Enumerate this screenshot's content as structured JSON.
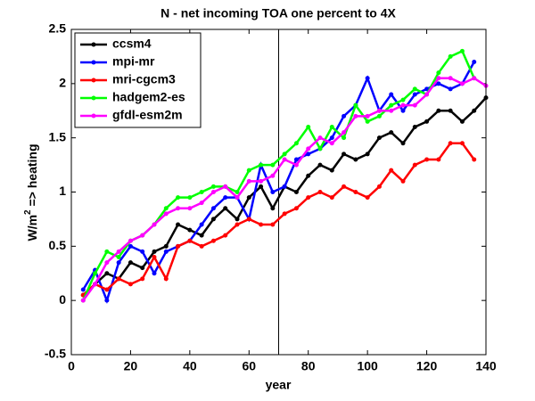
{
  "chart_data": {
    "type": "line",
    "title": "N - net incoming TOA one percent to 4X",
    "xlabel": "year",
    "ylabel_parts": [
      "W/m",
      "2",
      " => heating"
    ],
    "x": [
      4,
      8,
      12,
      16,
      20,
      24,
      28,
      32,
      36,
      40,
      44,
      48,
      52,
      56,
      60,
      64,
      68,
      72,
      76,
      80,
      84,
      88,
      92,
      96,
      100,
      104,
      108,
      112,
      116,
      120,
      124,
      128,
      132,
      136,
      140
    ],
    "series": [
      {
        "name": "ccsm4",
        "color": "#000000",
        "values": [
          0.05,
          0.15,
          0.25,
          0.2,
          0.35,
          0.3,
          0.45,
          0.5,
          0.7,
          0.65,
          0.6,
          0.75,
          0.85,
          0.75,
          0.95,
          1.05,
          0.85,
          1.05,
          1.0,
          1.15,
          1.25,
          1.2,
          1.35,
          1.3,
          1.35,
          1.5,
          1.55,
          1.45,
          1.6,
          1.65,
          1.75,
          1.75,
          1.65,
          1.75,
          1.87
        ]
      },
      {
        "name": "mpi-mr",
        "color": "#0000ff",
        "values": [
          0.1,
          0.28,
          0.0,
          0.35,
          0.5,
          0.45,
          0.25,
          0.45,
          0.5,
          0.55,
          0.7,
          0.85,
          0.95,
          0.95,
          0.75,
          1.25,
          1.0,
          1.05,
          1.3,
          1.35,
          1.4,
          1.5,
          1.7,
          1.8,
          2.05,
          1.75,
          1.9,
          1.75,
          1.9,
          1.95,
          2.0,
          1.95,
          2.0,
          2.2,
          null
        ]
      },
      {
        "name": "mri-cgcm3",
        "color": "#ff0000",
        "values": [
          0.05,
          0.15,
          0.1,
          0.2,
          0.15,
          0.2,
          0.4,
          0.2,
          0.5,
          0.55,
          0.5,
          0.55,
          0.6,
          0.7,
          0.75,
          0.7,
          0.7,
          0.8,
          0.85,
          0.95,
          1.0,
          0.95,
          1.05,
          1.0,
          0.95,
          1.05,
          1.2,
          1.1,
          1.25,
          1.3,
          1.3,
          1.45,
          1.45,
          1.3,
          null
        ]
      },
      {
        "name": "hadgem2-es",
        "color": "#00ff00",
        "values": [
          0.0,
          0.25,
          0.45,
          0.4,
          0.55,
          0.6,
          0.7,
          0.85,
          0.95,
          0.95,
          1.0,
          1.05,
          1.05,
          1.0,
          1.2,
          1.25,
          1.25,
          1.35,
          1.45,
          1.6,
          1.4,
          1.6,
          1.5,
          1.8,
          1.65,
          1.7,
          1.8,
          1.85,
          1.95,
          1.9,
          2.1,
          2.25,
          2.3,
          2.05,
          null
        ]
      },
      {
        "name": "gfdl-esm2m",
        "color": "#ff00ff",
        "values": [
          0.0,
          0.15,
          0.35,
          0.45,
          0.55,
          0.6,
          0.7,
          0.8,
          0.85,
          0.85,
          0.9,
          1.0,
          1.05,
          0.95,
          1.1,
          1.1,
          1.15,
          1.3,
          1.25,
          1.4,
          1.5,
          1.45,
          1.55,
          1.7,
          1.7,
          1.75,
          1.75,
          1.8,
          1.8,
          1.9,
          2.05,
          2.05,
          2.0,
          2.05,
          1.98
        ]
      }
    ],
    "vline": 70,
    "xlim": [
      0,
      140
    ],
    "xticks": [
      0,
      20,
      40,
      60,
      80,
      100,
      120,
      140
    ],
    "ylim": [
      -0.5,
      2.5
    ],
    "yticks": [
      -0.5,
      0,
      0.5,
      1,
      1.5,
      2,
      2.5
    ],
    "legend": "upper left"
  }
}
